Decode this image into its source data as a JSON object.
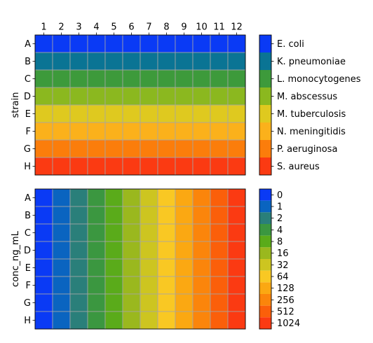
{
  "chart_data": [
    {
      "type": "heatmap",
      "ylabel": "strain",
      "columns": [
        "1",
        "2",
        "3",
        "4",
        "5",
        "6",
        "7",
        "8",
        "9",
        "10",
        "11",
        "12"
      ],
      "rows": [
        "A",
        "B",
        "C",
        "D",
        "E",
        "F",
        "G",
        "H"
      ],
      "row_values": [
        "E. coli",
        "K. pneumoniae",
        "L. monocytogenes",
        "M. abscessus",
        "M. tuberculosis",
        "N. meningitidis",
        "P. aeruginosa",
        "S. aureus"
      ],
      "legend": {
        "type": "categorical",
        "labels": [
          "E. coli",
          "K. pneumoniae",
          "L. monocytogenes",
          "M. abscessus",
          "M. tuberculosis",
          "N. meningitidis",
          "P. aeruginosa",
          "S. aureus"
        ],
        "colors": [
          "#0a3af5",
          "#0a7494",
          "#3d9a3b",
          "#8bb81f",
          "#dfc91f",
          "#fbb11b",
          "#fb7d0b",
          "#fb3a12"
        ]
      },
      "grid": true
    },
    {
      "type": "heatmap",
      "ylabel": "conc_ng_mL",
      "columns": [
        "1",
        "2",
        "3",
        "4",
        "5",
        "6",
        "7",
        "8",
        "9",
        "10",
        "11",
        "12"
      ],
      "rows": [
        "A",
        "B",
        "C",
        "D",
        "E",
        "F",
        "G",
        "H"
      ],
      "column_values": [
        "0",
        "1",
        "2",
        "4",
        "8",
        "16",
        "32",
        "64",
        "128",
        "256",
        "512",
        "1024"
      ],
      "legend": {
        "type": "categorical",
        "labels": [
          "0",
          "1",
          "2",
          "4",
          "8",
          "16",
          "32",
          "64",
          "128",
          "256",
          "512",
          "1024"
        ],
        "colors": [
          "#0a3af5",
          "#0a64c0",
          "#2a7f7a",
          "#3b9740",
          "#5aab1a",
          "#9ab81e",
          "#cdc520",
          "#f9c823",
          "#fba812",
          "#fb850b",
          "#fb5f0a",
          "#fb3a12"
        ]
      },
      "grid": true
    }
  ]
}
